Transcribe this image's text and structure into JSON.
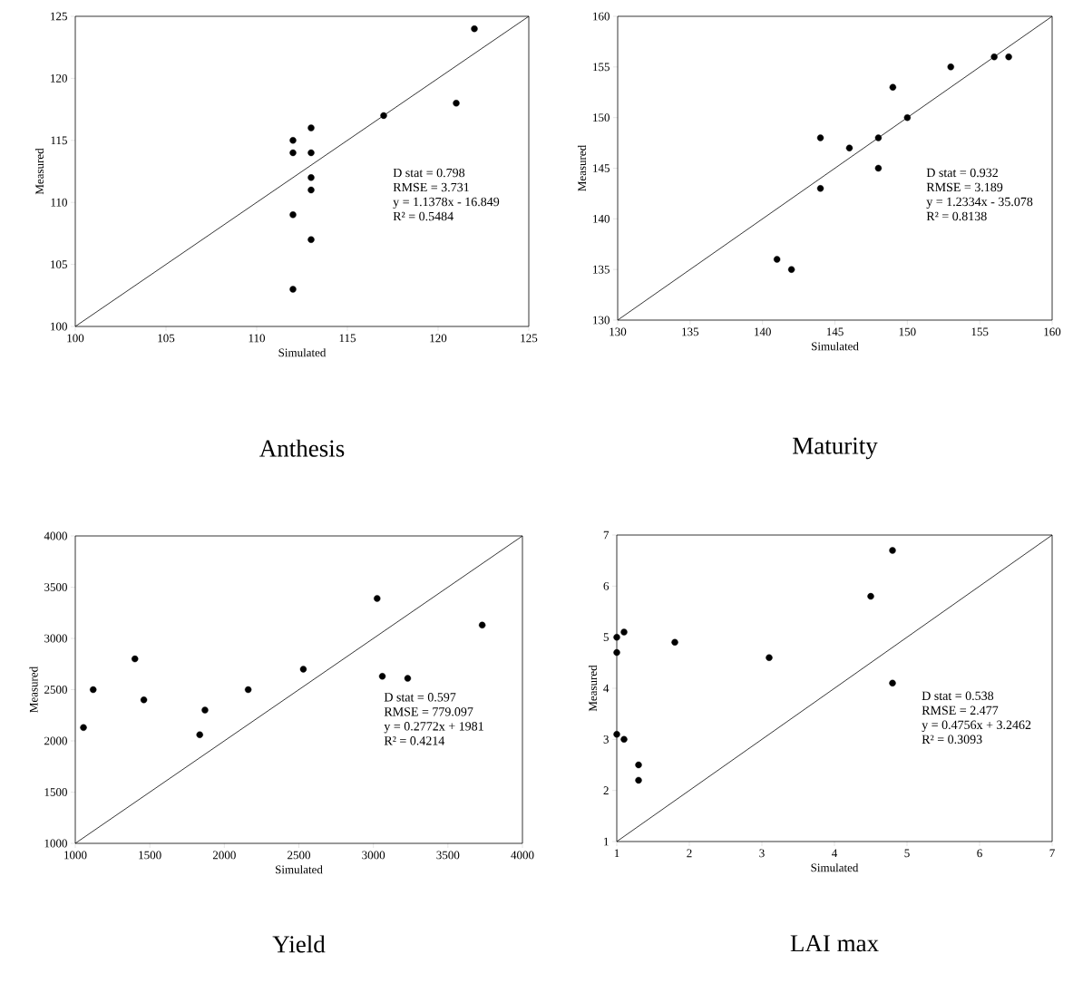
{
  "chart_data": [
    {
      "type": "scatter",
      "title": "Anthesis",
      "xlabel": "Simulated",
      "ylabel": "Measured",
      "xlim": [
        100,
        125
      ],
      "ylim": [
        100,
        125
      ],
      "xticks": [
        100,
        105,
        110,
        115,
        120,
        125
      ],
      "yticks": [
        100,
        105,
        110,
        115,
        120,
        125
      ],
      "annotations": [
        "D stat = 0.798",
        "RMSE = 3.731",
        "y = 1.1378x - 16.849",
        "R² = 0.5484"
      ],
      "series": [
        {
          "marker": "circle",
          "color": "#000000",
          "x": [
            112,
            112,
            113,
            113,
            113,
            113,
            112,
            113,
            112,
            117,
            121,
            122
          ],
          "values": [
            115,
            114,
            116,
            114,
            112,
            111,
            109,
            107,
            103,
            117,
            118,
            124
          ]
        },
        {
          "type": "line",
          "marker": "none",
          "color": "#000000",
          "x": [
            100,
            125
          ],
          "values": [
            100,
            125
          ]
        }
      ]
    },
    {
      "type": "scatter",
      "title": "Maturity",
      "xlabel": "Simulated",
      "ylabel": "Measured",
      "xlim": [
        130,
        160
      ],
      "ylim": [
        130,
        160
      ],
      "xticks": [
        130,
        135,
        140,
        145,
        150,
        155,
        160
      ],
      "yticks": [
        130,
        135,
        140,
        145,
        150,
        155,
        160
      ],
      "annotations": [
        "D stat = 0.932",
        "RMSE = 3.189",
        "y = 1.2334x - 35.078",
        "R² = 0.8138"
      ],
      "series": [
        {
          "marker": "circle",
          "color": "#000000",
          "x": [
            141,
            142,
            144,
            144,
            146,
            148,
            148,
            149,
            150,
            153,
            156,
            157
          ],
          "values": [
            136,
            135,
            148,
            143,
            147,
            148,
            145,
            153,
            150,
            155,
            156,
            156
          ]
        },
        {
          "type": "line",
          "marker": "none",
          "color": "#000000",
          "x": [
            130,
            160
          ],
          "values": [
            130,
            160
          ]
        }
      ]
    },
    {
      "type": "scatter",
      "title": "Yield",
      "xlabel": "Simulated",
      "ylabel": "Measured",
      "xlim": [
        1000,
        4000
      ],
      "ylim": [
        1000,
        4000
      ],
      "xticks": [
        1000,
        1500,
        2000,
        2500,
        3000,
        3500,
        4000
      ],
      "yticks": [
        1000,
        1500,
        2000,
        2500,
        3000,
        3500,
        4000
      ],
      "annotations": [
        "D stat = 0.597",
        "RMSE = 779.097",
        "y = 0.2772x + 1981",
        "R² = 0.4214"
      ],
      "series": [
        {
          "marker": "circle",
          "color": "#000000",
          "x": [
            1055,
            1120,
            1400,
            1460,
            1835,
            1870,
            2160,
            2530,
            3025,
            3060,
            3230,
            3730
          ],
          "values": [
            2130,
            2500,
            2800,
            2400,
            2060,
            2300,
            2500,
            2700,
            3390,
            2630,
            2610,
            3130
          ]
        },
        {
          "type": "line",
          "marker": "none",
          "color": "#000000",
          "x": [
            1000,
            4000
          ],
          "values": [
            1000,
            4000
          ]
        }
      ]
    },
    {
      "type": "scatter",
      "title": "LAI max",
      "xlabel": "Simulated",
      "ylabel": "Measured",
      "xlim": [
        1,
        7
      ],
      "ylim": [
        1,
        7
      ],
      "xticks": [
        1,
        2,
        3,
        4,
        5,
        6,
        7
      ],
      "yticks": [
        1,
        2,
        3,
        4,
        5,
        6,
        7
      ],
      "annotations": [
        "D stat = 0.538",
        "RMSE = 2.477",
        "y = 0.4756x + 3.2462",
        "R² = 0.3093"
      ],
      "series": [
        {
          "marker": "circle",
          "color": "#000000",
          "x": [
            1.0,
            1.1,
            1.0,
            1.8,
            3.1,
            4.5,
            4.8,
            4.8,
            1.0,
            1.1,
            1.3,
            1.3
          ],
          "values": [
            5.0,
            5.1,
            4.7,
            4.9,
            4.6,
            5.8,
            6.7,
            4.1,
            3.1,
            3.0,
            2.5,
            2.2
          ]
        },
        {
          "type": "line",
          "marker": "none",
          "color": "#000000",
          "x": [
            1,
            7
          ],
          "values": [
            1,
            7
          ]
        }
      ]
    }
  ]
}
